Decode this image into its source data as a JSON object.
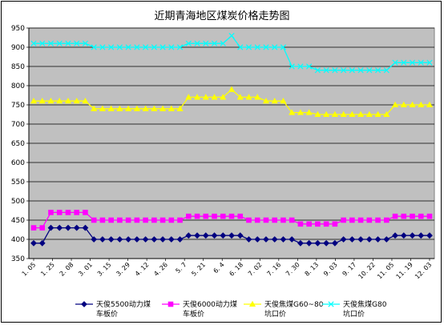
{
  "chart_data": {
    "type": "line",
    "title": "近期青海地区煤炭价格走势图",
    "ylim": [
      350,
      950
    ],
    "yticks": [
      350,
      400,
      450,
      500,
      550,
      600,
      650,
      700,
      750,
      800,
      850,
      900,
      950
    ],
    "xtick_labels": [
      "1. 05",
      "1. 25",
      "2. 08",
      "3. 01",
      "3. 15",
      "3. 29",
      "4. 12",
      "4. 26",
      "5. 7",
      "5. 21",
      "6. 4",
      "6. 18",
      "7. 02",
      "7. 16",
      "7. 30",
      "8. 13",
      "9. 03",
      "9. 17",
      "10. 22",
      "11. 05",
      "11. 19",
      "12. 03"
    ],
    "grid": "horizontal",
    "background": "#C0C0C0",
    "legend_position": "bottom",
    "series": [
      {
        "name": "天俊5500动力煤车板价",
        "color": "#000080",
        "marker": "diamond",
        "values": [
          390,
          390,
          430,
          430,
          430,
          430,
          430,
          400,
          400,
          400,
          400,
          400,
          400,
          400,
          400,
          400,
          400,
          400,
          410,
          410,
          410,
          410,
          410,
          410,
          410,
          400,
          400,
          400,
          400,
          400,
          400,
          390,
          390,
          390,
          390,
          390,
          400,
          400,
          400,
          400,
          400,
          400,
          410,
          410,
          410,
          410,
          410
        ]
      },
      {
        "name": "天俊6000动力煤车板价",
        "color": "#FF00FF",
        "marker": "square",
        "values": [
          430,
          430,
          470,
          470,
          470,
          470,
          470,
          450,
          450,
          450,
          450,
          450,
          450,
          450,
          450,
          450,
          450,
          450,
          460,
          460,
          460,
          460,
          460,
          460,
          460,
          450,
          450,
          450,
          450,
          450,
          450,
          440,
          440,
          440,
          440,
          440,
          450,
          450,
          450,
          450,
          450,
          450,
          460,
          460,
          460,
          460,
          460
        ]
      },
      {
        "name": "天俊焦煤G60~80坑口价",
        "color": "#FFFF00",
        "marker": "triangle",
        "values": [
          760,
          760,
          760,
          760,
          760,
          760,
          760,
          740,
          740,
          740,
          740,
          740,
          740,
          740,
          740,
          740,
          740,
          740,
          770,
          770,
          770,
          770,
          770,
          790,
          770,
          770,
          770,
          760,
          760,
          760,
          730,
          730,
          730,
          725,
          725,
          725,
          725,
          725,
          725,
          725,
          725,
          725,
          750,
          750,
          750,
          750,
          750
        ]
      },
      {
        "name": "天俊焦煤G80坑口价",
        "color": "#00FFFF",
        "marker": "x",
        "values": [
          910,
          910,
          910,
          910,
          910,
          910,
          910,
          900,
          900,
          900,
          900,
          900,
          900,
          900,
          900,
          900,
          900,
          900,
          910,
          910,
          910,
          910,
          910,
          930,
          900,
          900,
          900,
          900,
          900,
          900,
          850,
          850,
          850,
          840,
          840,
          840,
          840,
          840,
          840,
          840,
          840,
          840,
          860,
          860,
          860,
          860,
          860
        ]
      }
    ]
  },
  "legend": [
    {
      "line1": "天俊5500动力煤",
      "line2": "车板价"
    },
    {
      "line1": "天俊6000动力煤",
      "line2": "车板价"
    },
    {
      "line1": "天俊焦煤G60~80",
      "line2": "坑口价"
    },
    {
      "line1": "天俊焦煤G80",
      "line2": "坑口价"
    }
  ]
}
